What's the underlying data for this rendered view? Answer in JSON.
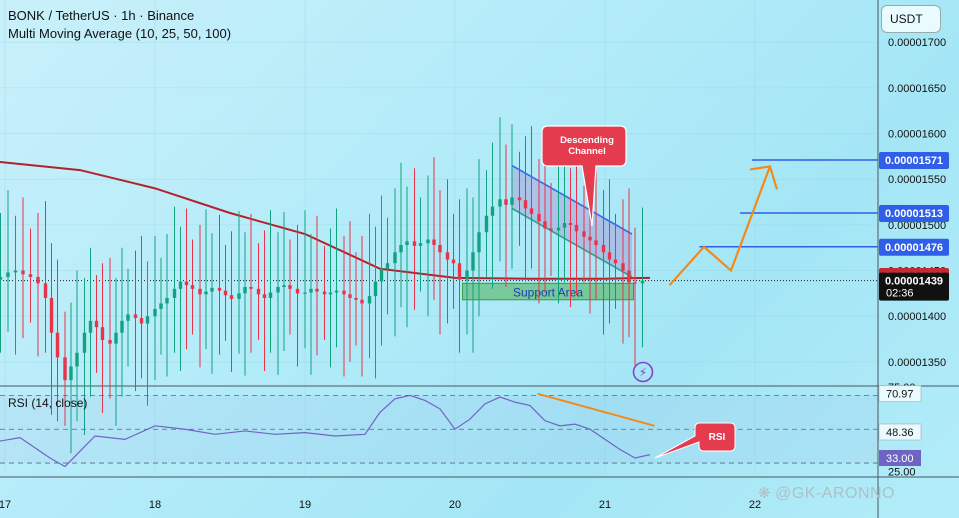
{
  "header": {
    "line1": "BONK / TetherUS · 1h · Binance",
    "line2": "Multi Moving Average (10, 25, 50, 100)"
  },
  "currency_button": "USDT",
  "watermark": "@GK-ARONNO",
  "colors": {
    "up": "#11a37f",
    "down": "#e8334a",
    "ma": "#b2222a",
    "rsi": "#6f64c4",
    "level": "#2f5fe8",
    "arrow": "#f28a1a",
    "callout": "#e43b4f",
    "support": "#4caf50"
  },
  "chart_data": [
    {
      "type": "line",
      "subtype": "candlestick",
      "y_ticks": [
        "0.00001350",
        "0.00001400",
        "0.00001450",
        "0.00001500",
        "0.00001550",
        "0.00001600",
        "0.00001650",
        "0.00001700"
      ],
      "x_ticks": [
        "17",
        "18",
        "19",
        "20",
        "21",
        "22"
      ],
      "ylim": [
        1.32e-05,
        1.74e-05
      ],
      "price_tags": [
        {
          "label": "0.00001571",
          "value": 1.571e-05,
          "color": "#2f5fe8"
        },
        {
          "label": "0.00001513",
          "value": 1.513e-05,
          "color": "#2f5fe8"
        },
        {
          "label": "0.00001476",
          "value": 1.476e-05,
          "color": "#2f5fe8"
        },
        {
          "label": "0.00001444",
          "value": 1.444e-05,
          "color": "#c62a32"
        },
        {
          "label": "0.00001439",
          "value": 1.439e-05,
          "color": "#111111",
          "sub": "02:36"
        }
      ],
      "current_price": 1.439e-05,
      "ma_line": [
        [
          16.9,
          1.57e-05
        ],
        [
          17.5,
          1.56e-05
        ],
        [
          18,
          1.54e-05
        ],
        [
          18.5,
          1.513e-05
        ],
        [
          19,
          1.49e-05
        ],
        [
          19.5,
          1.452e-05
        ],
        [
          20,
          1.442e-05
        ],
        [
          20.5,
          1.441e-05
        ],
        [
          21,
          1.441e-05
        ],
        [
          21.3,
          1.442e-05
        ]
      ],
      "candles_close": [
        [
          16.93,
          1.44e-05
        ],
        [
          16.97,
          1.443e-05
        ],
        [
          17.02,
          1.448e-05
        ],
        [
          17.07,
          1.45e-05
        ],
        [
          17.12,
          1.446e-05
        ],
        [
          17.17,
          1.443e-05
        ],
        [
          17.22,
          1.436e-05
        ],
        [
          17.27,
          1.42e-05
        ],
        [
          17.31,
          1.382e-05
        ],
        [
          17.35,
          1.355e-05
        ],
        [
          17.4,
          1.33e-05
        ],
        [
          17.44,
          1.345e-05
        ],
        [
          17.48,
          1.36e-05
        ],
        [
          17.53,
          1.382e-05
        ],
        [
          17.57,
          1.395e-05
        ],
        [
          17.61,
          1.388e-05
        ],
        [
          17.65,
          1.374e-05
        ],
        [
          17.7,
          1.37e-05
        ],
        [
          17.74,
          1.382e-05
        ],
        [
          17.78,
          1.395e-05
        ],
        [
          17.82,
          1.402e-05
        ],
        [
          17.87,
          1.398e-05
        ],
        [
          17.91,
          1.392e-05
        ],
        [
          17.95,
          1.4e-05
        ],
        [
          18,
          1.408e-05
        ],
        [
          18.04,
          1.414e-05
        ],
        [
          18.08,
          1.42e-05
        ],
        [
          18.13,
          1.43e-05
        ],
        [
          18.17,
          1.438e-05
        ],
        [
          18.21,
          1.434e-05
        ],
        [
          18.25,
          1.43e-05
        ],
        [
          18.3,
          1.424e-05
        ],
        [
          18.34,
          1.427e-05
        ],
        [
          18.38,
          1.431e-05
        ],
        [
          18.43,
          1.428e-05
        ],
        [
          18.47,
          1.423e-05
        ],
        [
          18.51,
          1.419e-05
        ],
        [
          18.56,
          1.425e-05
        ],
        [
          18.6,
          1.432e-05
        ],
        [
          18.64,
          1.43e-05
        ],
        [
          18.69,
          1.424e-05
        ],
        [
          18.73,
          1.42e-05
        ],
        [
          18.77,
          1.426e-05
        ],
        [
          18.82,
          1.432e-05
        ],
        [
          18.86,
          1.434e-05
        ],
        [
          18.9,
          1.43e-05
        ],
        [
          18.95,
          1.425e-05
        ],
        [
          19,
          1.426e-05
        ],
        [
          19.04,
          1.43e-05
        ],
        [
          19.08,
          1.427e-05
        ],
        [
          19.13,
          1.424e-05
        ],
        [
          19.17,
          1.426e-05
        ],
        [
          19.21,
          1.428e-05
        ],
        [
          19.26,
          1.424e-05
        ],
        [
          19.3,
          1.42e-05
        ],
        [
          19.34,
          1.418e-05
        ],
        [
          19.38,
          1.414e-05
        ],
        [
          19.43,
          1.422e-05
        ],
        [
          19.47,
          1.438e-05
        ],
        [
          19.51,
          1.452e-05
        ],
        [
          19.55,
          1.458e-05
        ],
        [
          19.6,
          1.47e-05
        ],
        [
          19.64,
          1.478e-05
        ],
        [
          19.68,
          1.482e-05
        ],
        [
          19.73,
          1.477e-05
        ],
        [
          19.77,
          1.48e-05
        ],
        [
          19.82,
          1.484e-05
        ],
        [
          19.86,
          1.478e-05
        ],
        [
          19.9,
          1.47e-05
        ],
        [
          19.95,
          1.462e-05
        ],
        [
          19.99,
          1.458e-05
        ],
        [
          20.03,
          1.44e-05
        ],
        [
          20.08,
          1.45e-05
        ],
        [
          20.12,
          1.47e-05
        ],
        [
          20.16,
          1.492e-05
        ],
        [
          20.21,
          1.51e-05
        ],
        [
          20.25,
          1.52e-05
        ],
        [
          20.3,
          1.528e-05
        ],
        [
          20.34,
          1.522e-05
        ],
        [
          20.38,
          1.53e-05
        ],
        [
          20.43,
          1.527e-05
        ],
        [
          20.47,
          1.518e-05
        ],
        [
          20.51,
          1.512e-05
        ],
        [
          20.56,
          1.504e-05
        ],
        [
          20.6,
          1.496e-05
        ],
        [
          20.64,
          1.494e-05
        ],
        [
          20.69,
          1.497e-05
        ],
        [
          20.73,
          1.502e-05
        ],
        [
          20.77,
          1.5e-05
        ],
        [
          20.81,
          1.493e-05
        ],
        [
          20.86,
          1.487e-05
        ],
        [
          20.9,
          1.483e-05
        ],
        [
          20.94,
          1.478e-05
        ],
        [
          20.99,
          1.47e-05
        ],
        [
          21.03,
          1.462e-05
        ],
        [
          21.07,
          1.458e-05
        ],
        [
          21.12,
          1.45e-05
        ],
        [
          21.16,
          1.437e-05
        ],
        [
          21.2,
          1.436e-05
        ],
        [
          21.25,
          1.439e-05
        ]
      ]
    },
    {
      "type": "line",
      "title": "RSI (14, close)",
      "y_ticks": [
        "75.00",
        "70.97",
        "48.36",
        "33.00",
        "25.00"
      ],
      "tag_values": [
        70.97,
        48.36,
        33.0
      ],
      "ylim": [
        22,
        80
      ],
      "bands": [
        30,
        50,
        70
      ],
      "rsi": [
        [
          16.9,
          42
        ],
        [
          17.1,
          45
        ],
        [
          17.3,
          33
        ],
        [
          17.4,
          28
        ],
        [
          17.6,
          46
        ],
        [
          17.8,
          44
        ],
        [
          18,
          52
        ],
        [
          18.2,
          50
        ],
        [
          18.4,
          47
        ],
        [
          18.6,
          49
        ],
        [
          18.8,
          47
        ],
        [
          19,
          48
        ],
        [
          19.2,
          46
        ],
        [
          19.4,
          47
        ],
        [
          19.5,
          60
        ],
        [
          19.6,
          68
        ],
        [
          19.7,
          70
        ],
        [
          19.8,
          67
        ],
        [
          19.9,
          62
        ],
        [
          20,
          50
        ],
        [
          20.1,
          56
        ],
        [
          20.2,
          65
        ],
        [
          20.3,
          69
        ],
        [
          20.4,
          66
        ],
        [
          20.5,
          64
        ],
        [
          20.6,
          55
        ],
        [
          20.7,
          52
        ],
        [
          20.8,
          53
        ],
        [
          20.9,
          50
        ],
        [
          21,
          44
        ],
        [
          21.1,
          38
        ],
        [
          21.2,
          33
        ],
        [
          21.3,
          35
        ]
      ]
    }
  ],
  "annotations": {
    "descending_channel": "Descending\nChannel",
    "support_area": "Support Area",
    "rsi_label": "RSI"
  }
}
